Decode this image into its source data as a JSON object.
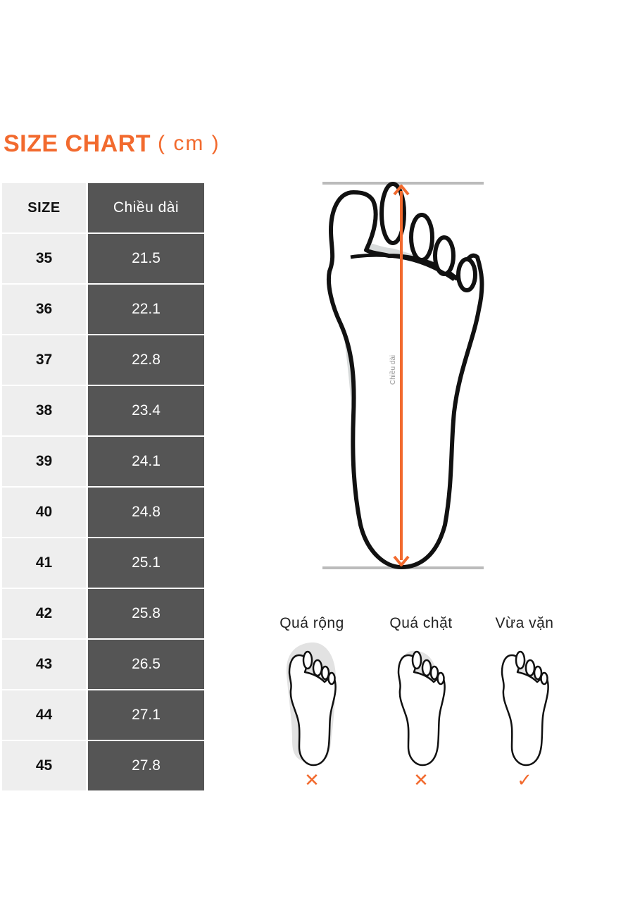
{
  "title": {
    "main": "SIZE CHART",
    "unit": "( cm )"
  },
  "table": {
    "header": {
      "size": "SIZE",
      "length": "Chiều dài"
    },
    "rows": [
      {
        "size": "35",
        "length": "21.5"
      },
      {
        "size": "36",
        "length": "22.1"
      },
      {
        "size": "37",
        "length": "22.8"
      },
      {
        "size": "38",
        "length": "23.4"
      },
      {
        "size": "39",
        "length": "24.1"
      },
      {
        "size": "40",
        "length": "24.8"
      },
      {
        "size": "41",
        "length": "25.1"
      },
      {
        "size": "42",
        "length": "25.8"
      },
      {
        "size": "43",
        "length": "26.5"
      },
      {
        "size": "44",
        "length": "27.1"
      },
      {
        "size": "45",
        "length": "27.8"
      }
    ]
  },
  "foot_diagram": {
    "measure_label": "Chiều dài"
  },
  "fit_guide": [
    {
      "label": "Quá rộng",
      "mark": "✕"
    },
    {
      "label": "Quá chặt",
      "mark": "✕"
    },
    {
      "label": "Vừa vặn",
      "mark": "✓"
    }
  ],
  "colors": {
    "accent": "#f26a2e",
    "table_dark": "#555555",
    "table_light": "#eeeeee",
    "guide_line": "#bbbbbb"
  }
}
